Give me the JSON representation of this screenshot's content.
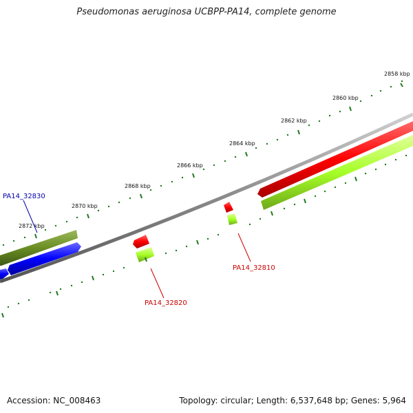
{
  "title": "Pseudomonas aeruginosa UCBPP-PA14, complete genome",
  "footer": {
    "accession": "Accession: NC_008463",
    "summary": "Topology: circular; Length: 6,537,648 bp; Genes: 5,964"
  },
  "colors": {
    "backbone": "#8a8a8a",
    "tick": "#1e7a1e",
    "red_gene": "#ff0000",
    "lightgreen_gene": "#a6ff26",
    "olive_gene": "#6b8e23",
    "blue_gene": "#0000ff",
    "label_red": "#cc0000",
    "label_blue": "#0000aa"
  },
  "chart_data": {
    "type": "genome-map",
    "kbp_labels": [
      "2858 kbp",
      "2860 kbp",
      "2862 kbp",
      "2864 kbp",
      "2866 kbp",
      "2868 kbp",
      "2870 kbp",
      "2872 kbp"
    ],
    "gene_labels": [
      {
        "name": "PA14_32830",
        "color": "blue"
      },
      {
        "name": "PA14_32820",
        "color": "red"
      },
      {
        "name": "PA14_32810",
        "color": "red"
      }
    ]
  }
}
